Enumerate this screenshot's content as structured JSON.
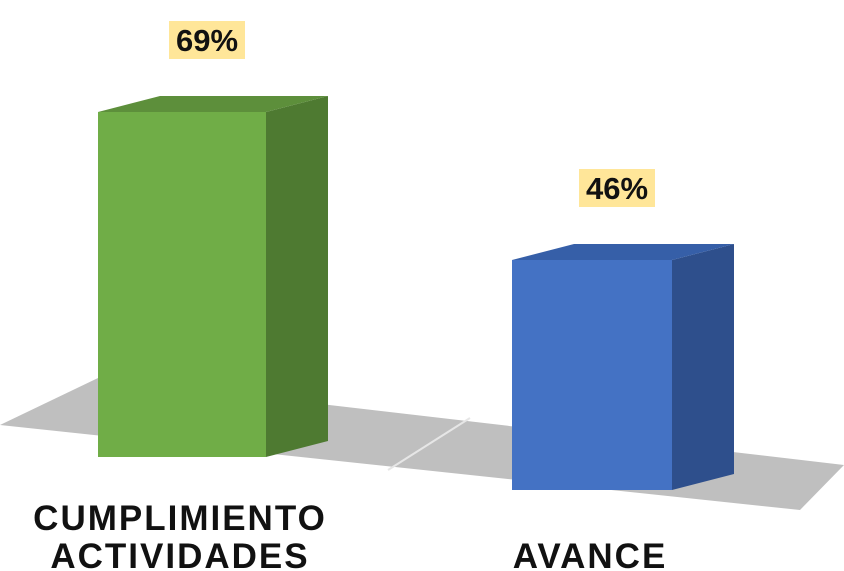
{
  "chart_data": {
    "type": "bar",
    "style": "3d-column",
    "categories": [
      [
        "CUMPLIMIENTO",
        "ACTIVIDADES"
      ],
      [
        "AVANCE"
      ]
    ],
    "values": [
      69,
      46
    ],
    "data_labels": [
      "69%",
      "46%"
    ],
    "unit": "%",
    "ylim": [
      0,
      100
    ],
    "grid": false,
    "legend": "none",
    "colors": {
      "bars": [
        {
          "front": "#70ad47",
          "side": "#4e7a31",
          "top": "#5d8f3b"
        },
        {
          "front": "#4472c4",
          "side": "#2e4f8c",
          "top": "#365fa8"
        }
      ],
      "floor": "#bfbfbf",
      "data_label_bg": "#ffe699"
    }
  }
}
